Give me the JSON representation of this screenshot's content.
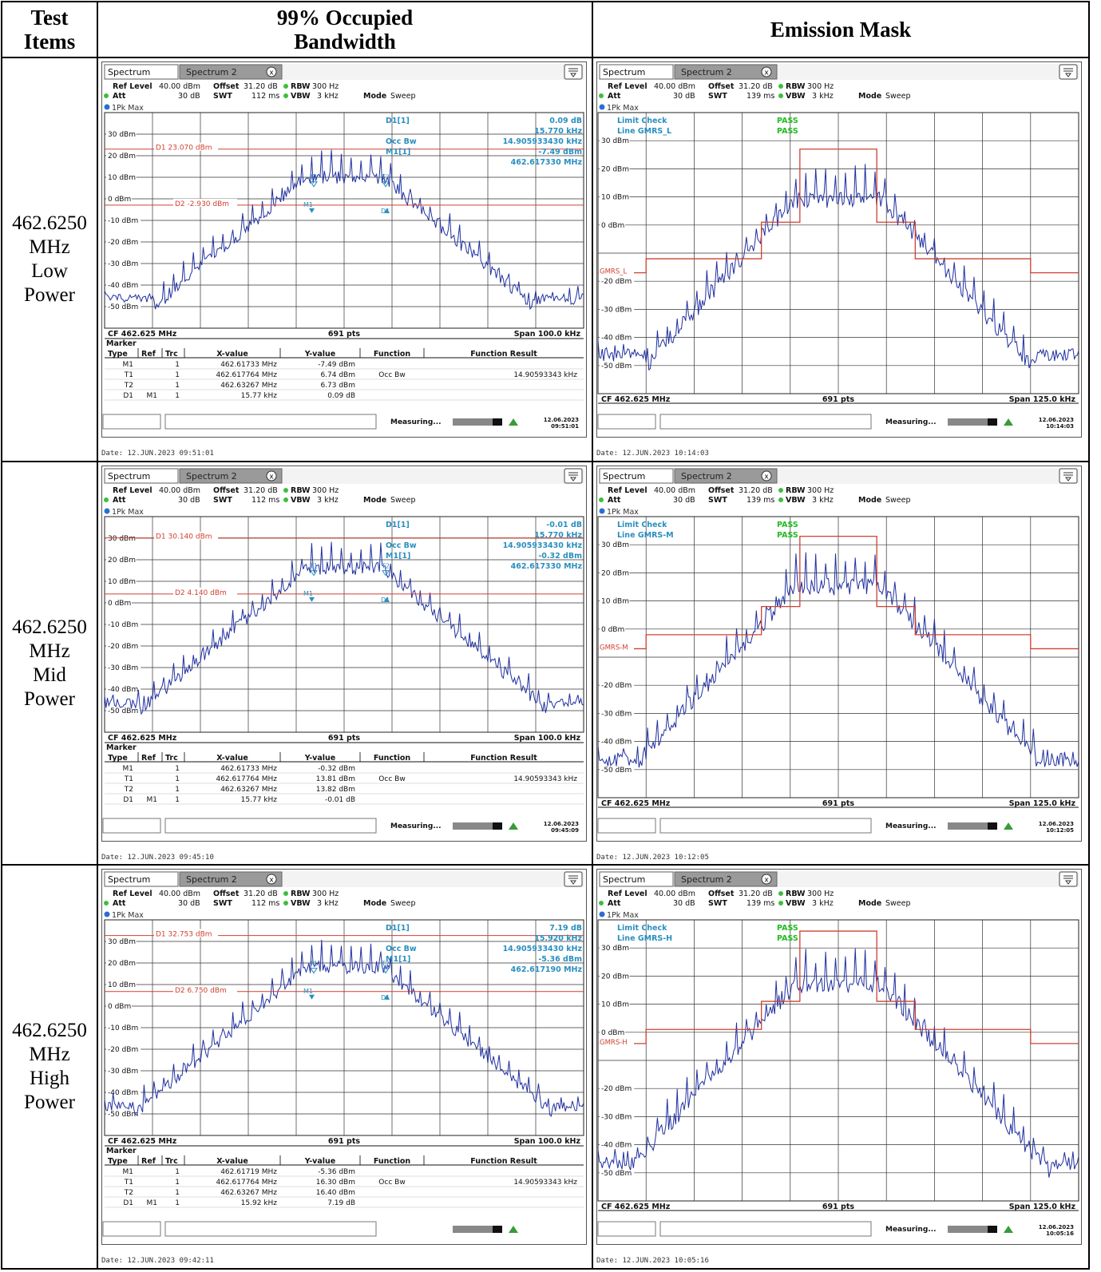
{
  "table": {
    "col_test_items": "Test Items",
    "col_obw": "99% Occupied Bandwidth",
    "col_mask": "Emission Mask"
  },
  "rows": [
    {
      "label_lines": [
        "462.6250",
        "MHz",
        "Low",
        "Power"
      ],
      "obw": {
        "tab1": "Spectrum",
        "tab2": "Spectrum 2",
        "ref_level": "40.00 dBm",
        "offset": "31.20 dB",
        "rbw": "300 Hz",
        "att": "30 dB",
        "swt": "112 ms",
        "vbw": "3 kHz",
        "mode": "Sweep",
        "trace": "1Pk Max",
        "yticks": [
          "30 dBm",
          "20 dBm",
          "10 dBm",
          "0 dBm",
          "-10 dBm",
          "-20 dBm",
          "-30 dBm",
          "-40 dBm",
          "-50 dBm"
        ],
        "d1_label": "D1  23.070 dBm",
        "d2_label": "D2  -2.930 dBm",
        "d1_level": 23.07,
        "d2_level": -2.93,
        "readouts": [
          [
            "D1[1]",
            "0.09 dB"
          ],
          [
            "",
            "15.770 kHz"
          ],
          [
            "Occ Bw",
            "14.905933430 kHz"
          ],
          [
            "M1[1]",
            "-7.49 dBm"
          ],
          [
            "",
            "462.617330 MHz"
          ]
        ],
        "cf": "CF 462.625 MHz",
        "pts": "691 pts",
        "span": "Span 100.0 kHz",
        "marker_title": "Marker",
        "marker_headers": [
          "Type",
          "Ref",
          "Trc",
          "X-value",
          "Y-value",
          "Function",
          "Function Result"
        ],
        "marker_rows": [
          [
            "M1",
            "",
            "1",
            "462.61733 MHz",
            "-7.49 dBm",
            "",
            ""
          ],
          [
            "T1",
            "",
            "1",
            "462.617764 MHz",
            "6.74 dBm",
            "Occ Bw",
            "14.90593343 kHz"
          ],
          [
            "T2",
            "",
            "1",
            "462.63267 MHz",
            "6.73 dBm",
            "",
            ""
          ],
          [
            "D1",
            "M1",
            "1",
            "15.77 kHz",
            "0.09 dB",
            "",
            ""
          ]
        ],
        "status": "Measuring...",
        "clock_date": "12.06.2023",
        "clock_time": "09:51:01",
        "date": "Date: 12.JUN.2023  09:51:01",
        "peak": 25
      },
      "mask": {
        "tab1": "Spectrum",
        "tab2": "Spectrum 2",
        "ref_level": "40.00 dBm",
        "offset": "31.20 dB",
        "rbw": "300 Hz",
        "att": "30 dB",
        "swt": "139 ms",
        "vbw": "3 kHz",
        "mode": "Sweep",
        "trace": "1Pk Max",
        "limit_check": "Limit Check",
        "limit_line": "Line GMRS_L",
        "pass1": "PASS",
        "pass2": "PASS",
        "limit_tag": "GMRS_L",
        "yticks": [
          "30 dBm",
          "20 dBm",
          "10 dBm",
          "0 dBm",
          "",
          "-20 dBm",
          "-30 dBm",
          "-40 dBm",
          "-50 dBm"
        ],
        "cf": "CF 462.625 MHz",
        "pts": "691 pts",
        "span": "Span 125.0 kHz",
        "status": "Measuring...",
        "clock_date": "12.06.2023",
        "clock_time": "10:14:03",
        "date": "Date: 12.JUN.2023  10:14:03",
        "mask_levels": [
          -12,
          1,
          27
        ],
        "peak": 24
      }
    },
    {
      "label_lines": [
        "462.6250",
        "MHz",
        "Mid",
        "Power"
      ],
      "obw": {
        "tab1": "Spectrum",
        "tab2": "Spectrum 2",
        "ref_level": "40.00 dBm",
        "offset": "31.20 dB",
        "rbw": "300 Hz",
        "att": "30 dB",
        "swt": "112 ms",
        "vbw": "3 kHz",
        "mode": "Sweep",
        "trace": "1Pk Max",
        "yticks": [
          "30 dBm",
          "20 dBm",
          "10 dBm",
          "0 dBm",
          "-10 dBm",
          "-20 dBm",
          "-30 dBm",
          "-40 dBm",
          "-50 dBm"
        ],
        "d1_label": "D1  30.140 dBm",
        "d2_label": "D2  4.140 dBm",
        "d1_level": 30.14,
        "d2_level": 4.14,
        "readouts": [
          [
            "D1[1]",
            "-0.01 dB"
          ],
          [
            "",
            "15.770 kHz"
          ],
          [
            "Occ Bw",
            "14.905933430 kHz"
          ],
          [
            "M1[1]",
            "-0.32 dBm"
          ],
          [
            "",
            "462.617330 MHz"
          ]
        ],
        "cf": "CF 462.625 MHz",
        "pts": "691 pts",
        "span": "Span 100.0 kHz",
        "marker_title": "Marker",
        "marker_headers": [
          "Type",
          "Ref",
          "Trc",
          "X-value",
          "Y-value",
          "Function",
          "Function Result"
        ],
        "marker_rows": [
          [
            "M1",
            "",
            "1",
            "462.61733 MHz",
            "-0.32 dBm",
            "",
            ""
          ],
          [
            "T1",
            "",
            "1",
            "462.617764 MHz",
            "13.81 dBm",
            "Occ Bw",
            "14.90593343 kHz"
          ],
          [
            "T2",
            "",
            "1",
            "462.63267 MHz",
            "13.82 dBm",
            "",
            ""
          ],
          [
            "D1",
            "M1",
            "1",
            "15.77 kHz",
            "-0.01 dB",
            "",
            ""
          ]
        ],
        "status": "Measuring...",
        "clock_date": "12.06.2023",
        "clock_time": "09:45:09",
        "date": "Date: 12.JUN.2023  09:45:10",
        "peak": 31
      },
      "mask": {
        "tab1": "Spectrum",
        "tab2": "Spectrum 2",
        "ref_level": "40.00 dBm",
        "offset": "31.20 dB",
        "rbw": "300 Hz",
        "att": "30 dB",
        "swt": "139 ms",
        "vbw": "3 kHz",
        "mode": "Sweep",
        "trace": "1Pk Max",
        "limit_check": "Limit Check",
        "limit_line": "Line GMRS-M",
        "pass1": "PASS",
        "pass2": "PASS",
        "limit_tag": "GMRS-M",
        "yticks": [
          "30 dBm",
          "20 dBm",
          "10 dBm",
          "0 dBm",
          "",
          "-20 dBm",
          "-30 dBm",
          "-40 dBm",
          "-50 dBm"
        ],
        "cf": "CF 462.625 MHz",
        "pts": "691 pts",
        "span": "Span 125.0 kHz",
        "status": "Measuring...",
        "clock_date": "12.06.2023",
        "clock_time": "10:12:05",
        "date": "Date: 12.JUN.2023  10:12:05",
        "mask_levels": [
          -2,
          8,
          33
        ],
        "peak": 30
      }
    },
    {
      "label_lines": [
        "462.6250",
        "MHz",
        "High",
        "Power"
      ],
      "obw": {
        "tab1": "Spectrum",
        "tab2": "Spectrum 2",
        "ref_level": "40.00 dBm",
        "offset": "31.20 dB",
        "rbw": "300 Hz",
        "att": "30 dB",
        "swt": "112 ms",
        "vbw": "3 kHz",
        "mode": "Sweep",
        "trace": "1Pk Max",
        "yticks": [
          "30 dBm",
          "20 dBm",
          "10 dBm",
          "0 dBm",
          "-10 dBm",
          "-20 dBm",
          "-30 dBm",
          "-40 dBm",
          "-50 dBm"
        ],
        "d1_label": "D1  32.753 dBm",
        "d2_label": "D2  6.750 dBm",
        "d1_level": 32.753,
        "d2_level": 6.75,
        "readouts": [
          [
            "D1[1]",
            "7.19 dB"
          ],
          [
            "",
            "15.920 kHz"
          ],
          [
            "Occ Bw",
            "14.905933430 kHz"
          ],
          [
            "M1[1]",
            "-5.36 dBm"
          ],
          [
            "",
            "462.617190 MHz"
          ]
        ],
        "cf": "CF 462.625 MHz",
        "pts": "691 pts",
        "span": "Span 100.0 kHz",
        "marker_title": "Marker",
        "marker_headers": [
          "Type",
          "Ref",
          "Trc",
          "X-value",
          "Y-value",
          "Function",
          "Function Result"
        ],
        "marker_rows": [
          [
            "M1",
            "",
            "1",
            "462.61719 MHz",
            "-5.36 dBm",
            "",
            ""
          ],
          [
            "T1",
            "",
            "1",
            "462.617764 MHz",
            "16.30 dBm",
            "Occ Bw",
            "14.90593343 kHz"
          ],
          [
            "T2",
            "",
            "1",
            "462.63267 MHz",
            "16.40 dBm",
            "",
            ""
          ],
          [
            "D1",
            "M1",
            "1",
            "15.92 kHz",
            "7.19 dB",
            "",
            ""
          ]
        ],
        "status": "",
        "clock_date": "",
        "clock_time": "",
        "date": "Date: 12.JUN.2023  09:42:11",
        "peak": 33
      },
      "mask": {
        "tab1": "Spectrum",
        "tab2": "Spectrum 2",
        "ref_level": "40.00 dBm",
        "offset": "31.20 dB",
        "rbw": "300 Hz",
        "att": "30 dB",
        "swt": "139 ms",
        "vbw": "3 kHz",
        "mode": "Sweep",
        "trace": "1Pk Max",
        "limit_check": "Limit Check",
        "limit_line": "Line GMRS-H",
        "pass1": "PASS",
        "pass2": "PASS",
        "limit_tag": "GMRS-H",
        "yticks": [
          "30 dBm",
          "20 dBm",
          "10 dBm",
          "0 dBm",
          "",
          "-20 dBm",
          "-30 dBm",
          "-40 dBm",
          "-50 dBm"
        ],
        "cf": "CF 462.625 MHz",
        "pts": "691 pts",
        "span": "Span 125.0 kHz",
        "status": "Measuring...",
        "clock_date": "12.06.2023",
        "clock_time": "10:05:16",
        "date": "Date: 12.JUN.2023  10:05:16",
        "mask_levels": [
          1,
          11,
          36
        ],
        "peak": 32
      }
    }
  ],
  "colors": {
    "trace": "#2030a0",
    "limit": "#d04030",
    "readout": "#2a8fc0",
    "pass": "#22bb22",
    "grid": "#202020"
  }
}
